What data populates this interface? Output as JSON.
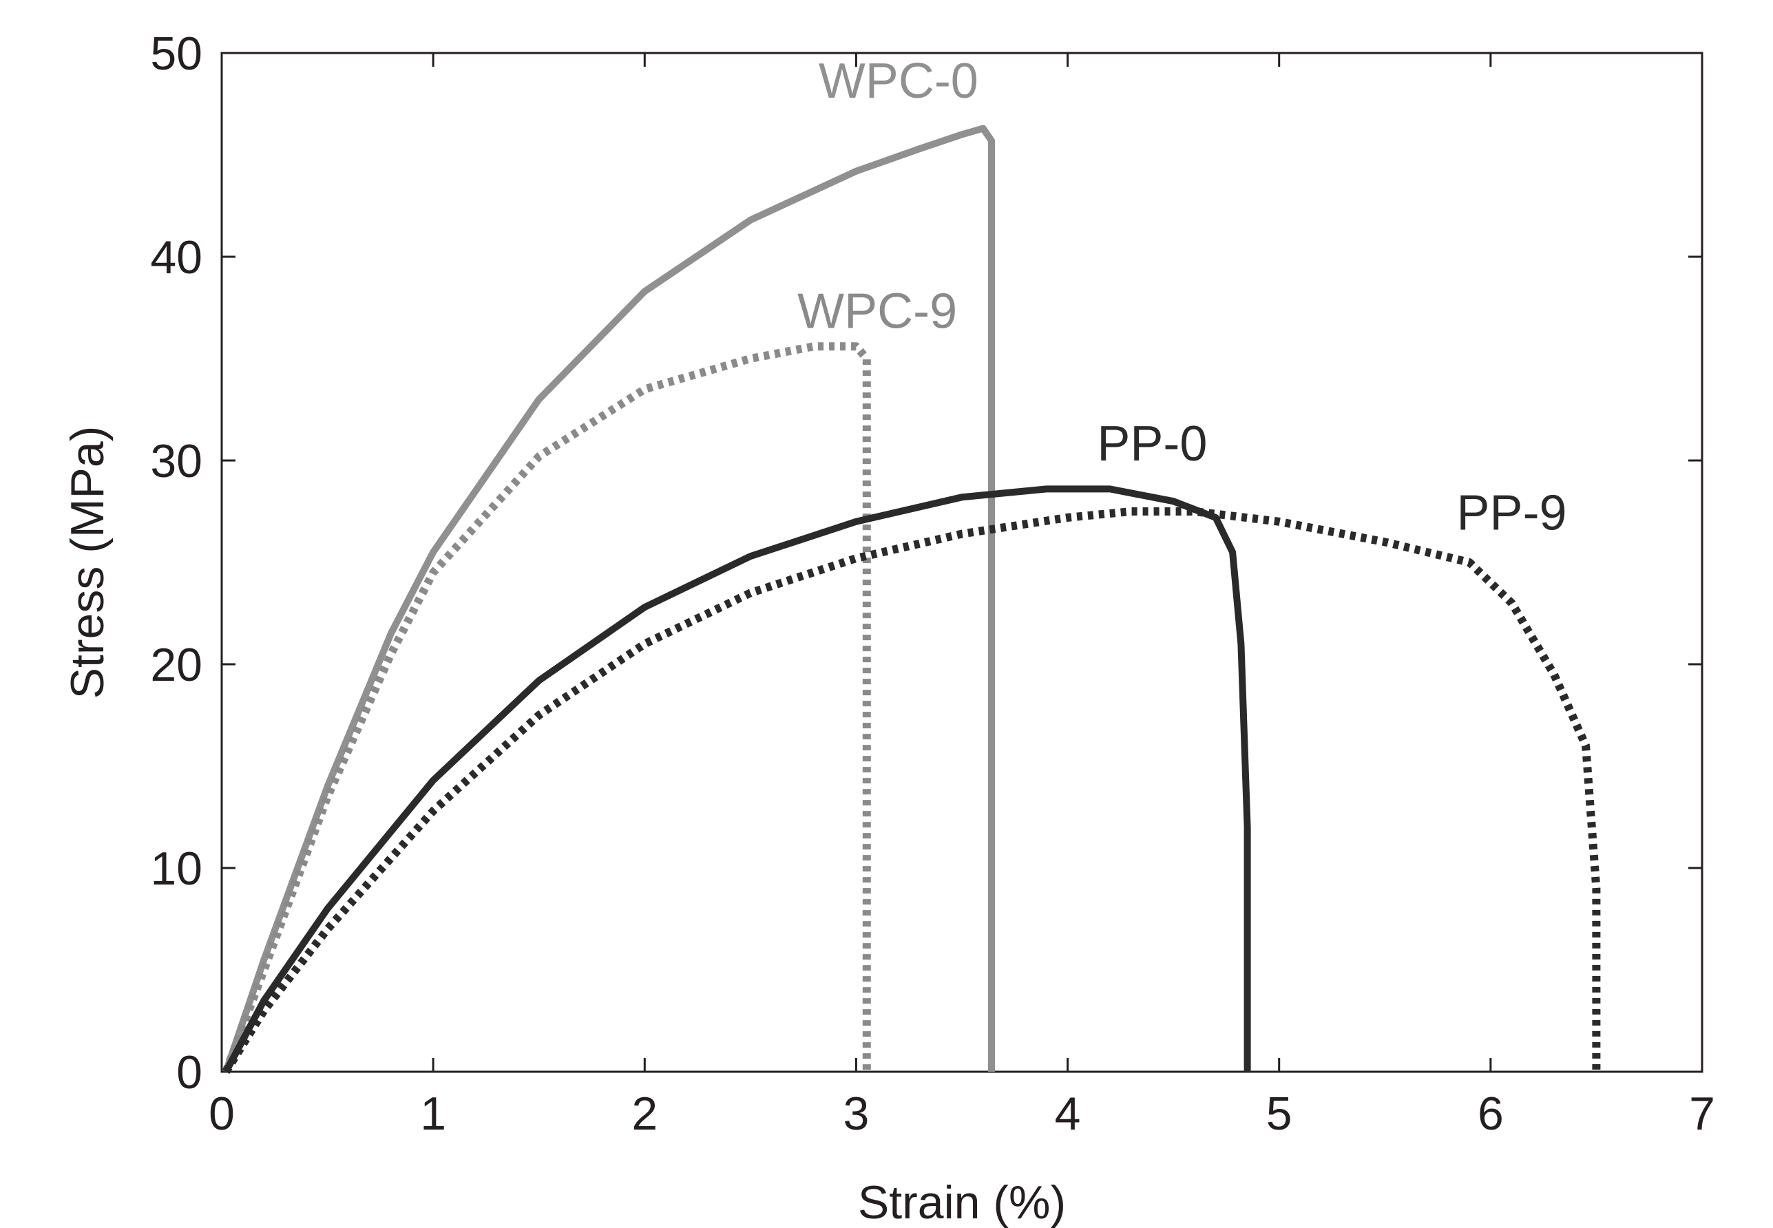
{
  "chart_data": {
    "type": "line",
    "title": "",
    "xlabel": "Strain (%)",
    "ylabel": "Stress (MPa)",
    "xlim": [
      0,
      7
    ],
    "ylim": [
      0,
      50
    ],
    "xticks": [
      0,
      1,
      2,
      3,
      4,
      5,
      6,
      7
    ],
    "yticks": [
      0,
      10,
      20,
      30,
      40,
      50
    ],
    "grid": false,
    "legend": "inline labels",
    "series": [
      {
        "name": "WPC-0",
        "label": "WPC-0",
        "color": "#909090",
        "style": "solid",
        "label_at": [
          3.2,
          47.8
        ],
        "x": [
          0.02,
          0.2,
          0.5,
          0.8,
          1.0,
          1.5,
          2.0,
          2.5,
          3.0,
          3.3,
          3.5,
          3.6,
          3.64,
          3.64
        ],
        "y": [
          0,
          5.5,
          14,
          21.5,
          25.5,
          33,
          38.3,
          41.8,
          44.2,
          45.3,
          46.0,
          46.3,
          45.7,
          0
        ]
      },
      {
        "name": "WPC-9",
        "label": "WPC-9",
        "color": "#8a8a8a",
        "style": "dotted",
        "label_at": [
          3.1,
          36.5
        ],
        "x": [
          0.02,
          0.2,
          0.5,
          0.8,
          1.0,
          1.5,
          2.0,
          2.5,
          2.8,
          3.0,
          3.05,
          3.05
        ],
        "y": [
          0,
          5.0,
          13.5,
          20.5,
          24.5,
          30.2,
          33.5,
          35.0,
          35.6,
          35.6,
          35.0,
          0
        ]
      },
      {
        "name": "PP-0",
        "label": "PP-0",
        "color": "#2a2a2a",
        "style": "solid",
        "label_at": [
          4.4,
          30.0
        ],
        "x": [
          0.02,
          0.2,
          0.5,
          1.0,
          1.5,
          2.0,
          2.5,
          3.0,
          3.5,
          3.9,
          4.2,
          4.5,
          4.7,
          4.78,
          4.82,
          4.85,
          4.85
        ],
        "y": [
          0,
          3.5,
          8.0,
          14.3,
          19.2,
          22.8,
          25.3,
          27.0,
          28.2,
          28.6,
          28.6,
          28.0,
          27.2,
          25.5,
          21.0,
          12.0,
          0
        ]
      },
      {
        "name": "PP-9",
        "label": "PP-9",
        "color": "#2a2a2a",
        "style": "dotted",
        "label_at": [
          6.1,
          26.6
        ],
        "x": [
          0.02,
          0.2,
          0.5,
          1.0,
          1.5,
          2.0,
          2.5,
          3.0,
          3.5,
          4.0,
          4.3,
          4.6,
          5.0,
          5.5,
          5.9,
          6.1,
          6.3,
          6.45,
          6.5,
          6.5
        ],
        "y": [
          0,
          3.0,
          7.0,
          12.8,
          17.5,
          21.0,
          23.5,
          25.2,
          26.4,
          27.2,
          27.5,
          27.5,
          27.0,
          26.0,
          25.0,
          23.0,
          19.5,
          16.0,
          9.0,
          0
        ]
      }
    ]
  }
}
